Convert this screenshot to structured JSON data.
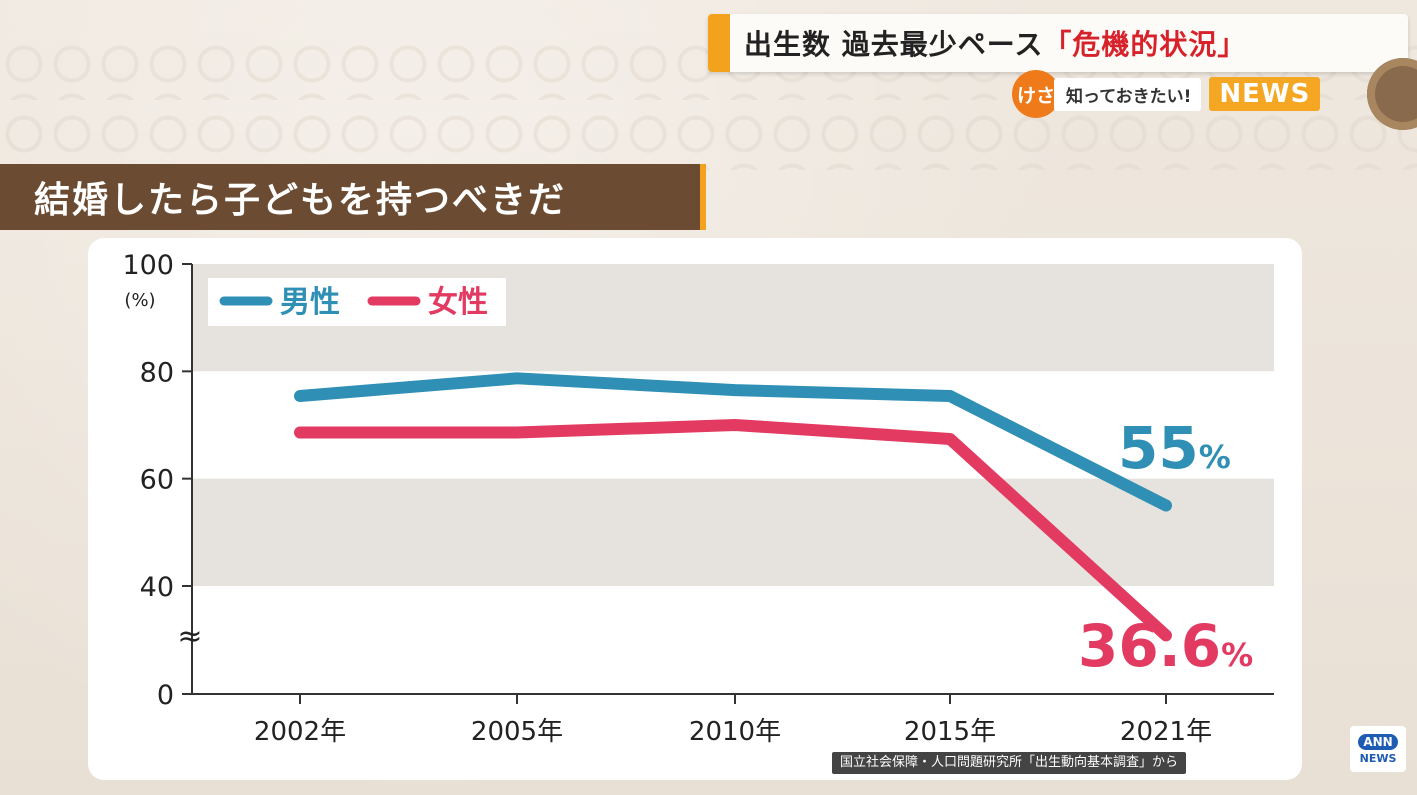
{
  "header": {
    "headline_main": "出生数 過去最少ペース",
    "headline_highlight": "「危機的状況」",
    "brand_circle": "けさ",
    "brand_tag": "知っておきたい!",
    "brand_news": "NEWS"
  },
  "question": "結婚したら子どもを持つべきだ",
  "source": "国立社会保障・人口問題研究所「出生動向基本調査」から",
  "logo": {
    "top": "ANN",
    "bottom": "NEWS"
  },
  "colors": {
    "male": "#2f8fb5",
    "female": "#e23a61",
    "band_gray": "#e6e2dd",
    "accent": "#f2a21c",
    "banner": "#6b4c33"
  },
  "chart_data": {
    "type": "line",
    "categories": [
      "2002年",
      "2005年",
      "2010年",
      "2015年",
      "2021年"
    ],
    "series": [
      {
        "name": "男性",
        "values": [
          75.4,
          78.7,
          76.5,
          75.4,
          55.0
        ],
        "color": "#2f8fb5"
      },
      {
        "name": "女性",
        "values": [
          68.6,
          68.6,
          70.0,
          67.4,
          36.6
        ],
        "color": "#e23a61"
      }
    ],
    "y_ticks": [
      "100",
      "80",
      "60",
      "40",
      "0"
    ],
    "y_tick_values": [
      100,
      80,
      60,
      40,
      0
    ],
    "ylabel_unit": "(%)",
    "axis_break": "≈",
    "ylim": [
      0,
      100
    ],
    "end_labels": [
      {
        "series": "男性",
        "number": "55",
        "unit": "%"
      },
      {
        "series": "女性",
        "number": "36.6",
        "unit": "%"
      }
    ],
    "legend_position": "top-left",
    "grid": "alternating horizontal bands"
  }
}
